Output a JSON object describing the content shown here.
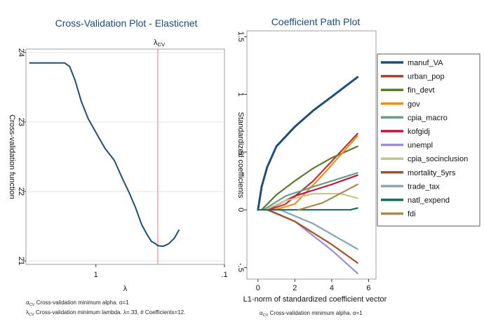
{
  "chart_data": [
    {
      "type": "line",
      "title": "Cross-Validation Plot - Elasticnet",
      "xlabel": "λ",
      "ylabel": "Cross-validation function",
      "x_scale": "log",
      "x_reversed": true,
      "xlim": [
        3.5,
        0.1
      ],
      "ylim": [
        20.95,
        24.05
      ],
      "x_ticks": [
        {
          "value": 1,
          "label": "1"
        },
        {
          "value": 0.1,
          "label": ".1"
        }
      ],
      "y_ticks": [
        {
          "value": 21,
          "label": "21"
        },
        {
          "value": 22,
          "label": "22"
        },
        {
          "value": 23,
          "label": "23"
        },
        {
          "value": 24,
          "label": "24"
        }
      ],
      "vline": {
        "value": 0.33,
        "label": "λ",
        "label_sub": "CV",
        "color": "#e57373"
      },
      "series": [
        {
          "color": "#1f4e79",
          "x": [
            3.3,
            2.9,
            2.5,
            2.1,
            1.75,
            1.6,
            1.45,
            1.3,
            1.15,
            1.0,
            0.85,
            0.72,
            0.62,
            0.55,
            0.49,
            0.44,
            0.4,
            0.37,
            0.345,
            0.33,
            0.3,
            0.27,
            0.245,
            0.225
          ],
          "y": [
            23.85,
            23.85,
            23.85,
            23.85,
            23.85,
            23.8,
            23.6,
            23.3,
            23.05,
            22.85,
            22.62,
            22.45,
            22.18,
            21.98,
            21.76,
            21.52,
            21.38,
            21.28,
            21.25,
            21.22,
            21.21,
            21.25,
            21.33,
            21.45
          ]
        }
      ],
      "notes": [
        {
          "prefix": "α",
          "sub": "CV",
          "text": "Cross-validation minimum alpha.  α=1"
        },
        {
          "prefix": "λ",
          "sub": "CV",
          "text": "Cross-validation minimum lambda.  λ=.33, # Coefficients=12."
        }
      ]
    },
    {
      "type": "line",
      "title": "Coefficient Path Plot",
      "xlabel": "L1-norm of standardized coefficient vector",
      "ylabel": "Standardized coefficients",
      "xlim": [
        -0.6,
        6.4
      ],
      "ylim": [
        -0.6,
        1.55
      ],
      "x_ticks": [
        0,
        2,
        4,
        6
      ],
      "y_ticks": [
        {
          "value": -0.5,
          "label": "-.5"
        },
        {
          "value": 0,
          "label": "0"
        },
        {
          "value": 0.5,
          "label": ".5"
        },
        {
          "value": 1,
          "label": "1"
        },
        {
          "value": 1.5,
          "label": "1.5"
        }
      ],
      "legend_position": "right",
      "note": {
        "prefix": "α",
        "sub": "CV",
        "text": "Cross-validation minimum alpha.  α=1"
      },
      "series": [
        {
          "name": "manuf_VA",
          "color": "#1f4e79",
          "width": 3,
          "x": [
            0,
            0.2,
            0.5,
            1.0,
            2.0,
            3.0,
            4.0,
            5.4
          ],
          "y": [
            0,
            0.2,
            0.37,
            0.55,
            0.72,
            0.86,
            0.98,
            1.15
          ]
        },
        {
          "name": "urban_pop",
          "color": "#b03a3a",
          "x": [
            0.6,
            1.5,
            3.0,
            5.4
          ],
          "y": [
            0,
            0.05,
            0.25,
            0.66
          ]
        },
        {
          "name": "fin_devt",
          "color": "#5a7a2a",
          "x": [
            0.2,
            1.0,
            2.0,
            3.0,
            4.0,
            5.4
          ],
          "y": [
            0,
            0.13,
            0.25,
            0.36,
            0.45,
            0.55
          ]
        },
        {
          "name": "gov",
          "color": "#f08c1a",
          "x": [
            0.9,
            2.0,
            3.5,
            5.4
          ],
          "y": [
            0,
            0.05,
            0.3,
            0.64
          ]
        },
        {
          "name": "cpia_macro",
          "color": "#6a9a8a",
          "x": [
            0.3,
            1.5,
            3.0,
            5.4
          ],
          "y": [
            0,
            0.12,
            0.2,
            0.32
          ]
        },
        {
          "name": "kofgidj",
          "color": "#c0143c",
          "x": [
            0.5,
            2.0,
            4.0,
            5.4
          ],
          "y": [
            0,
            0.12,
            0.22,
            0.3
          ]
        },
        {
          "name": "unempl",
          "color": "#9a8ee0",
          "x": [
            0.6,
            2.0,
            4.0,
            5.4
          ],
          "y": [
            0,
            -0.1,
            -0.35,
            -0.55
          ]
        },
        {
          "name": "cpia_socinclusion",
          "color": "#c9c48a",
          "x": [
            0.4,
            1.5,
            3.0,
            4.5,
            5.4
          ],
          "y": [
            0,
            0.08,
            0.14,
            0.14,
            0.1
          ]
        },
        {
          "name": "mortality_5yrs",
          "color": "#a0522d",
          "x": [
            0.5,
            2.0,
            4.0,
            5.4
          ],
          "y": [
            0,
            -0.1,
            -0.3,
            -0.46
          ]
        },
        {
          "name": "trade_tax",
          "color": "#8aa4b8",
          "x": [
            1.2,
            3.0,
            5.4
          ],
          "y": [
            0,
            -0.12,
            -0.34
          ]
        },
        {
          "name": "natl_expend",
          "color": "#1a6a5a",
          "x": [
            0,
            3.0,
            5.0,
            5.4
          ],
          "y": [
            0,
            0,
            0,
            0.015
          ]
        },
        {
          "name": "fdi",
          "color": "#a88a4a",
          "x": [
            2.2,
            3.5,
            5.4
          ],
          "y": [
            0,
            0.06,
            0.22
          ]
        }
      ]
    }
  ]
}
